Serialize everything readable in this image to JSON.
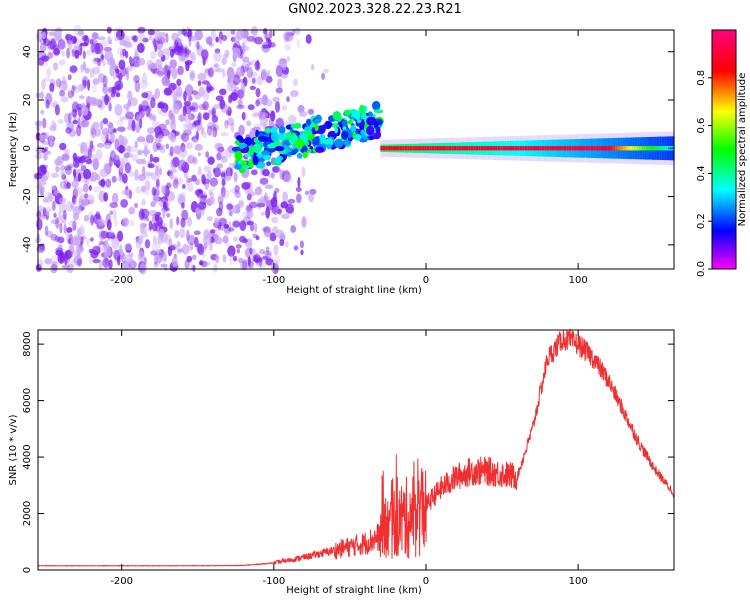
{
  "title": "GN02.2023.328.22.23.R21",
  "chart_data": [
    {
      "type": "heatmap",
      "xlabel": "Height of straight line (km)",
      "ylabel": "Frequency (Hz)",
      "xlim": [
        -255,
        163
      ],
      "ylim": [
        -50,
        49
      ],
      "xticks": [
        "-200",
        "-100",
        "0",
        "100"
      ],
      "xtick_values": [
        -200,
        -100,
        0,
        100
      ],
      "yticks": [
        "-40",
        "-20",
        "0",
        "20",
        "40"
      ],
      "ytick_values": [
        -40,
        -20,
        0,
        20,
        40
      ],
      "colorbar": {
        "label": "Normalized spectral amplitude",
        "range": [
          0,
          1
        ],
        "ticks": [
          "0.0",
          "0.2",
          "0.4",
          "0.6",
          "0.8"
        ],
        "tick_values": [
          0.0,
          0.2,
          0.4,
          0.6,
          0.8
        ],
        "colors": [
          "#ff00ff",
          "#0000ff",
          "#00ffff",
          "#00ff00",
          "#ffff00",
          "#ff0000",
          "#ff0080"
        ]
      },
      "features": [
        {
          "region": "noise",
          "x": [
            -255,
            -105
          ],
          "freq": [
            -50,
            49
          ],
          "amplitude": 0.05
        },
        {
          "region": "onset",
          "x": [
            -125,
            -30
          ],
          "freq_center_start": -3,
          "freq_center_end": 12,
          "amplitude": 0.4
        },
        {
          "region": "carrier",
          "x": [
            -30,
            163
          ],
          "freq_center": 0,
          "amplitude": 0.9
        }
      ]
    },
    {
      "type": "line",
      "xlabel": "Height of straight line (km)",
      "ylabel": "SNR (10 * v/v)",
      "xlim": [
        -255,
        163
      ],
      "ylim": [
        0,
        8500
      ],
      "xticks": [
        "-200",
        "-100",
        "0",
        "100"
      ],
      "xtick_values": [
        -200,
        -100,
        0,
        100
      ],
      "yticks": [
        "0",
        "2000",
        "4000",
        "6000",
        "8000"
      ],
      "ytick_values": [
        0,
        2000,
        4000,
        6000,
        8000
      ],
      "color": "#f03030",
      "x": [
        -255,
        -200,
        -150,
        -120,
        -100,
        -80,
        -60,
        -40,
        -30,
        -20,
        -10,
        0,
        10,
        20,
        30,
        40,
        50,
        60,
        70,
        80,
        90,
        100,
        110,
        120,
        130,
        140,
        150,
        163
      ],
      "y": [
        150,
        150,
        150,
        160,
        250,
        450,
        700,
        950,
        1200,
        1700,
        1900,
        2300,
        2900,
        3300,
        3500,
        3500,
        3400,
        3300,
        5000,
        7500,
        8200,
        8000,
        7500,
        6700,
        5600,
        4500,
        3600,
        2700
      ]
    }
  ]
}
